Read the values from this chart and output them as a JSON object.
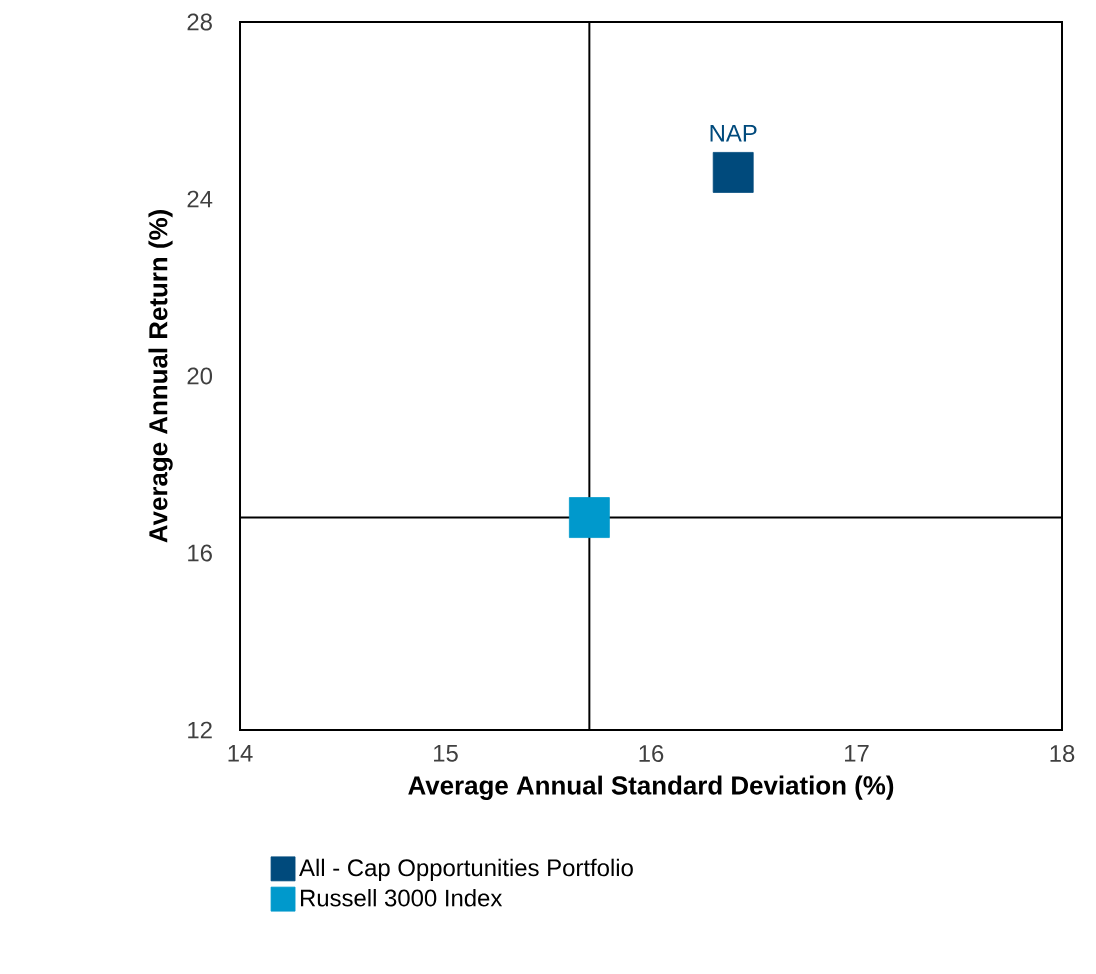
{
  "chart_data": {
    "type": "scatter",
    "xlabel": "Average Annual Standard Deviation (%)",
    "ylabel": "Average Annual Return (%)",
    "series": [
      {
        "name": "All - Cap Opportunities Portfolio",
        "color": "#004a7c",
        "x": [
          16.4
        ],
        "values": [
          24.6
        ]
      },
      {
        "name": "Russell 3000 Index",
        "color": "#0099cc",
        "x": [
          15.7
        ],
        "values": [
          16.8
        ]
      }
    ],
    "xlim": [
      14,
      18
    ],
    "xticks": [
      14,
      15,
      16,
      17,
      18
    ],
    "ylim": [
      12,
      28
    ],
    "yticks": [
      12,
      16,
      20,
      24,
      28
    ],
    "ref_lines": [
      {
        "axis": "x",
        "value": 15.7,
        "color": "#000000"
      },
      {
        "axis": "y",
        "value": 16.8,
        "color": "#000000"
      }
    ],
    "annotations": [
      {
        "text": "NAP",
        "x": 16.4,
        "y": 24.6
      }
    ],
    "marker": "square",
    "grid": false,
    "legend": "bottom"
  }
}
